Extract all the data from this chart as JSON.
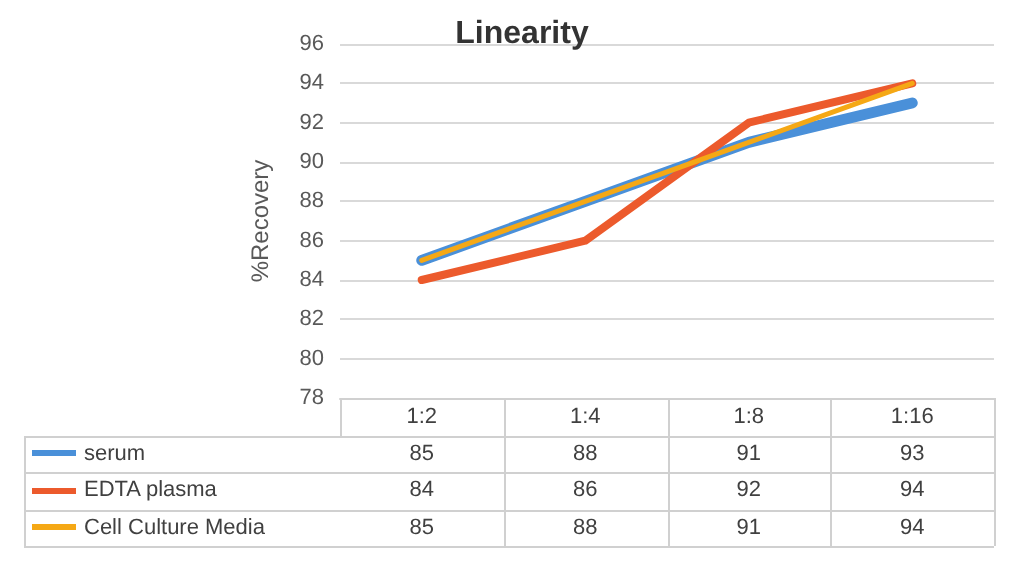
{
  "chart_data": {
    "type": "line",
    "title": "Linearity",
    "ylabel": "%Recovery",
    "categories": [
      "1:2",
      "1:4",
      "1:8",
      "1:16"
    ],
    "series": [
      {
        "name": "serum",
        "color": "#4a90d9",
        "values": [
          85,
          88,
          91,
          93
        ]
      },
      {
        "name": "EDTA plasma",
        "color": "#ec5a2c",
        "values": [
          84,
          86,
          92,
          94
        ]
      },
      {
        "name": "Cell Culture Media",
        "color": "#f5a815",
        "values": [
          85,
          88,
          91,
          94
        ]
      }
    ],
    "ylim": [
      78,
      96
    ],
    "yticks": [
      78,
      80,
      82,
      84,
      86,
      88,
      90,
      92,
      94,
      96
    ],
    "grid": "y",
    "legend": "bottom",
    "data_labels": true,
    "marker": "none",
    "line_style": "solid"
  }
}
